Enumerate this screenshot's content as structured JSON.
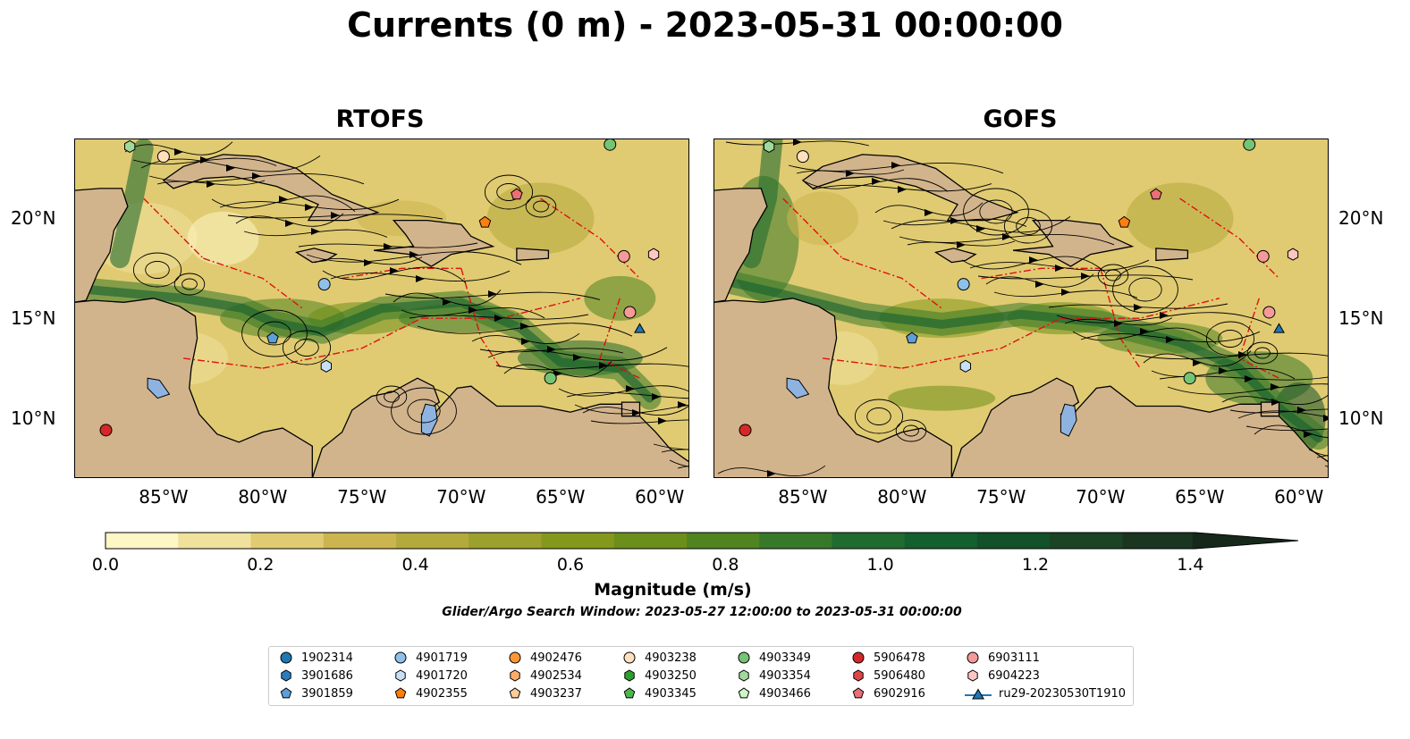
{
  "figure": {
    "title": "Currents (0 m) - 2023-05-31 00:00:00",
    "panels": [
      {
        "title": "RTOFS"
      },
      {
        "title": "GOFS"
      }
    ],
    "lon_ticks": [
      "85°W",
      "80°W",
      "75°W",
      "70°W",
      "65°W",
      "60°W"
    ],
    "lat_ticks": [
      "20°N",
      "15°N",
      "10°N"
    ],
    "extent": {
      "lon": [
        -89.5,
        -58.5
      ],
      "lat": [
        7.0,
        24.0
      ]
    }
  },
  "colorbar": {
    "label": "Magnitude (m/s)",
    "ticks": [
      "0.0",
      "0.2",
      "0.4",
      "0.6",
      "0.8",
      "1.0",
      "1.2",
      "1.4"
    ],
    "range": [
      0,
      1.5
    ],
    "colors": [
      "#fdf6c5",
      "#f0e29d",
      "#e0cb72",
      "#ccb54f",
      "#b4aa3c",
      "#9ca02c",
      "#84991b",
      "#6b8f1a",
      "#4f8420",
      "#377928",
      "#216b2e",
      "#135f2e",
      "#125129",
      "#1b4325",
      "#1a3520",
      "#15281a"
    ]
  },
  "subtitle": "Glider/Argo Search Window: 2023-05-27 12:00:00 to 2023-05-31 00:00:00",
  "land_color": "#d2b48c",
  "legend": {
    "items": [
      {
        "label": "1902314",
        "shape": "circle",
        "color": "#1f77b4"
      },
      {
        "label": "3901686",
        "shape": "hexagon",
        "color": "#2a7dbf"
      },
      {
        "label": "3901859",
        "shape": "pentagon",
        "color": "#5d9fd6"
      },
      {
        "label": "4901719",
        "shape": "circle",
        "color": "#8ec0ea"
      },
      {
        "label": "4901720",
        "shape": "hexagon",
        "color": "#c6e0f7"
      },
      {
        "label": "4902355",
        "shape": "pentagon",
        "color": "#ff7f0e"
      },
      {
        "label": "4902476",
        "shape": "circle",
        "color": "#ff9636"
      },
      {
        "label": "4902534",
        "shape": "hexagon",
        "color": "#ffad66"
      },
      {
        "label": "4903237",
        "shape": "pentagon",
        "color": "#ffcb99"
      },
      {
        "label": "4903238",
        "shape": "circle",
        "color": "#ffe0bf"
      },
      {
        "label": "4903250",
        "shape": "hexagon",
        "color": "#2ca02c"
      },
      {
        "label": "4903345",
        "shape": "pentagon",
        "color": "#4cb84c"
      },
      {
        "label": "4903349",
        "shape": "circle",
        "color": "#74c476"
      },
      {
        "label": "4903354",
        "shape": "hexagon",
        "color": "#a1d99b"
      },
      {
        "label": "4903466",
        "shape": "pentagon",
        "color": "#cdf5c6"
      },
      {
        "label": "5906478",
        "shape": "circle",
        "color": "#d62728"
      },
      {
        "label": "5906480",
        "shape": "hexagon",
        "color": "#e04547"
      },
      {
        "label": "6902916",
        "shape": "pentagon",
        "color": "#ec6f75"
      },
      {
        "label": "6903111",
        "shape": "circle",
        "color": "#f59a99"
      },
      {
        "label": "6904223",
        "shape": "hexagon",
        "color": "#fcc6c3"
      },
      {
        "label": "ru29-20230530T1910",
        "shape": "triangle-line",
        "color": "#1f77b4"
      }
    ]
  },
  "floats": [
    {
      "id": "4903354",
      "lon": -86.7,
      "lat": 23.6
    },
    {
      "id": "4903238",
      "lon": -85.0,
      "lat": 23.1
    },
    {
      "id": "6902916",
      "lon": -67.2,
      "lat": 21.2
    },
    {
      "id": "4902355",
      "lon": -68.8,
      "lat": 19.8
    },
    {
      "id": "4903349",
      "lon": -62.5,
      "lat": 23.7
    },
    {
      "id": "6903111",
      "lon": -61.8,
      "lat": 18.1
    },
    {
      "id": "6904223",
      "lon": -60.3,
      "lat": 18.2
    },
    {
      "id": "4901719",
      "lon": -76.9,
      "lat": 16.7
    },
    {
      "id": "3901859",
      "lon": -79.5,
      "lat": 14.0
    },
    {
      "id": "4901720",
      "lon": -76.8,
      "lat": 12.6
    },
    {
      "id": "4903349",
      "lon": -65.5,
      "lat": 12.0
    },
    {
      "id": "5906478",
      "lon": -87.9,
      "lat": 9.4
    },
    {
      "id": "6903111",
      "lon": -61.5,
      "lat": 15.3
    },
    {
      "id": "ru29-20230530T1910",
      "lon": -61.0,
      "lat": 14.5
    }
  ]
}
